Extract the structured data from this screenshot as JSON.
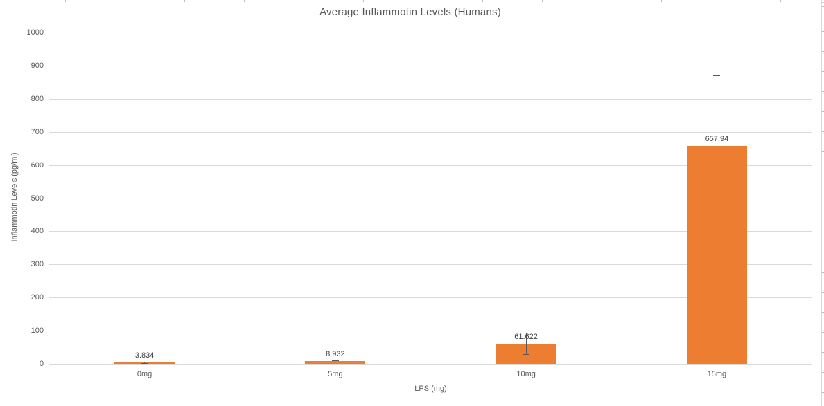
{
  "window": {
    "background": "#ffffff"
  },
  "chart_data": {
    "type": "bar",
    "title": "Average Inflammotin Levels (Humans)",
    "xlabel": "LPS (mg)",
    "ylabel": "Inflammotin Levels (pg/ml)",
    "categories": [
      "0mg",
      "5mg",
      "10mg",
      "15mg"
    ],
    "values": [
      3.834,
      8.932,
      61.622,
      657.94
    ],
    "data_labels": [
      "3.834",
      "8.932",
      "61.622",
      "657.94"
    ],
    "error_values_estimated": [
      1.5,
      2,
      33,
      212
    ],
    "ylim": [
      0,
      1000
    ],
    "yticks": [
      0,
      100,
      200,
      300,
      400,
      500,
      600,
      700,
      800,
      900,
      1000
    ],
    "grid": true,
    "legend": "none",
    "bar_color": "#ED7D31",
    "colors": {
      "gridline": "#D9D9D9",
      "axis_line": "#D9D9D9",
      "axis_text": "#595959",
      "title_text": "#595959",
      "data_label_text": "#404040",
      "error_bar": "#595959"
    }
  }
}
